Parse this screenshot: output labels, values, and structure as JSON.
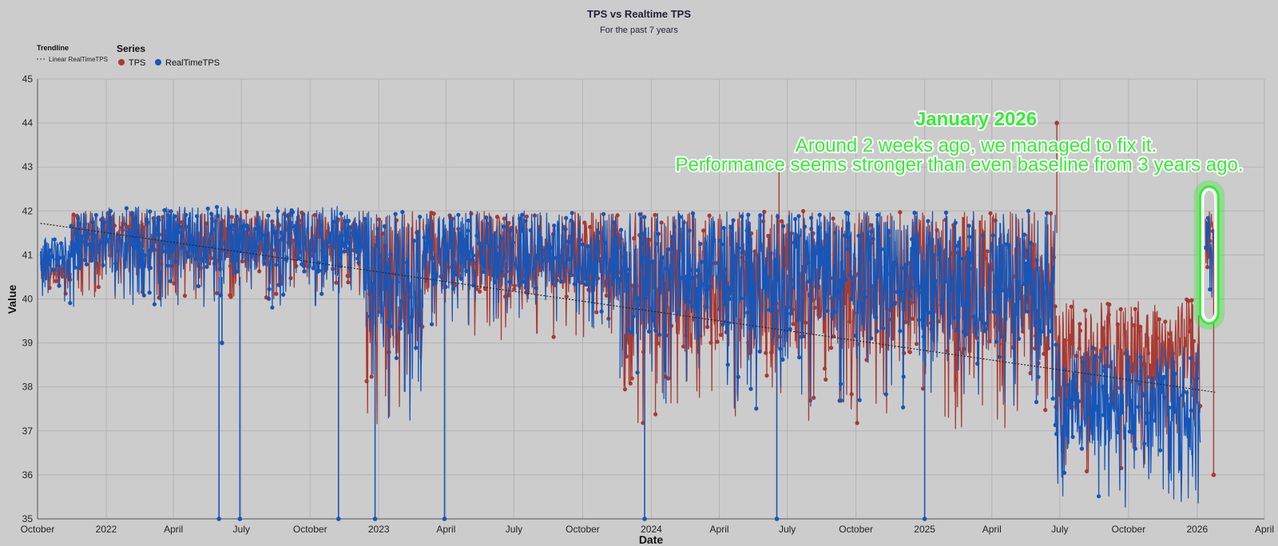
{
  "chart_data": {
    "type": "line",
    "title": "TPS vs Realtime TPS",
    "subtitle": "For the past 7 years",
    "xlabel": "Date",
    "ylabel": "Value",
    "ylim": [
      35,
      45
    ],
    "yticks": [
      35,
      36,
      37,
      38,
      39,
      40,
      41,
      42,
      43,
      44,
      45
    ],
    "xlim": [
      "2021-10-01",
      "2026-04-01"
    ],
    "xticks": [
      {
        "date": "2021-10-01",
        "label": "October"
      },
      {
        "date": "2022-01-01",
        "label": "2022"
      },
      {
        "date": "2022-04-01",
        "label": "April"
      },
      {
        "date": "2022-07-01",
        "label": "July"
      },
      {
        "date": "2022-10-01",
        "label": "October"
      },
      {
        "date": "2023-01-01",
        "label": "2023"
      },
      {
        "date": "2023-04-01",
        "label": "April"
      },
      {
        "date": "2023-07-01",
        "label": "July"
      },
      {
        "date": "2023-10-01",
        "label": "October"
      },
      {
        "date": "2024-01-01",
        "label": "2024"
      },
      {
        "date": "2024-04-01",
        "label": "April"
      },
      {
        "date": "2024-07-01",
        "label": "July"
      },
      {
        "date": "2024-10-01",
        "label": "October"
      },
      {
        "date": "2025-01-01",
        "label": "2025"
      },
      {
        "date": "2025-04-01",
        "label": "April"
      },
      {
        "date": "2025-07-01",
        "label": "July"
      },
      {
        "date": "2025-10-01",
        "label": "October"
      },
      {
        "date": "2026-01-01",
        "label": "2026"
      },
      {
        "date": "2026-04-01",
        "label": "April"
      }
    ],
    "grid": true,
    "legend": {
      "title": "Series",
      "placement": "top-left",
      "trendline_title": "Trendline",
      "trendline_label": "Linear RealTimeTPS"
    },
    "series": [
      {
        "name": "TPS",
        "color": "#a93a32",
        "segments": [
          {
            "start": "2021-10-05",
            "end": "2021-11-15",
            "low": 40,
            "high": 41
          },
          {
            "start": "2021-11-15",
            "end": "2022-12-15",
            "low": 40,
            "high": 42
          },
          {
            "start": "2022-12-15",
            "end": "2023-03-01",
            "low": 37,
            "high": 42
          },
          {
            "start": "2023-03-01",
            "end": "2023-11-20",
            "low": 39,
            "high": 42
          },
          {
            "start": "2023-11-20",
            "end": "2025-06-25",
            "low": 37,
            "high": 42
          },
          {
            "start": "2025-06-25",
            "end": "2026-01-05",
            "low": 36,
            "high": 40
          },
          {
            "start": "2026-01-12",
            "end": "2026-01-22",
            "low": 40,
            "high": 42
          }
        ],
        "outliers": [
          {
            "date": "2025-06-27",
            "value": 44
          },
          {
            "date": "2024-06-20",
            "value": 43
          },
          {
            "date": "2026-01-23",
            "value": 36
          }
        ]
      },
      {
        "name": "RealTimeTPS",
        "color": "#1656b8",
        "segments": [
          {
            "start": "2021-10-05",
            "end": "2021-11-15",
            "low": 39.8,
            "high": 41.4
          },
          {
            "start": "2021-11-15",
            "end": "2022-12-15",
            "low": 39.8,
            "high": 42.1
          },
          {
            "start": "2022-12-15",
            "end": "2023-03-01",
            "low": 37.2,
            "high": 42
          },
          {
            "start": "2023-03-01",
            "end": "2023-11-20",
            "low": 39.3,
            "high": 42
          },
          {
            "start": "2023-11-20",
            "end": "2025-06-25",
            "low": 37.5,
            "high": 42
          },
          {
            "start": "2025-06-25",
            "end": "2026-01-05",
            "low": 35.2,
            "high": 39
          },
          {
            "start": "2026-01-12",
            "end": "2026-01-22",
            "low": 39.7,
            "high": 42
          }
        ],
        "drops": [
          {
            "date": "2022-06-01",
            "value": 35
          },
          {
            "date": "2022-06-05",
            "value": 39
          },
          {
            "date": "2022-06-29",
            "value": 35
          },
          {
            "date": "2022-11-08",
            "value": 35
          },
          {
            "date": "2022-12-27",
            "value": 35
          },
          {
            "date": "2023-03-30",
            "value": 35
          },
          {
            "date": "2023-12-23",
            "value": 35
          },
          {
            "date": "2024-06-17",
            "value": 35
          },
          {
            "date": "2025-01-01",
            "value": 35
          }
        ]
      }
    ],
    "trendline": {
      "name": "Linear RealTimeTPS",
      "start": {
        "date": "2021-10-05",
        "value": 41.72
      },
      "end": {
        "date": "2026-01-25",
        "value": 37.88
      }
    },
    "annotations": {
      "headline": "January 2026",
      "line1": "Around 2 weeks ago, we managed to fix it.",
      "line2": "Performance seems stronger than even baseline from 3 years ago.",
      "highlight": {
        "start": "2026-01-08",
        "end": "2026-01-26",
        "low": 39.5,
        "high": 42.5,
        "color": "#33ee33"
      }
    }
  }
}
